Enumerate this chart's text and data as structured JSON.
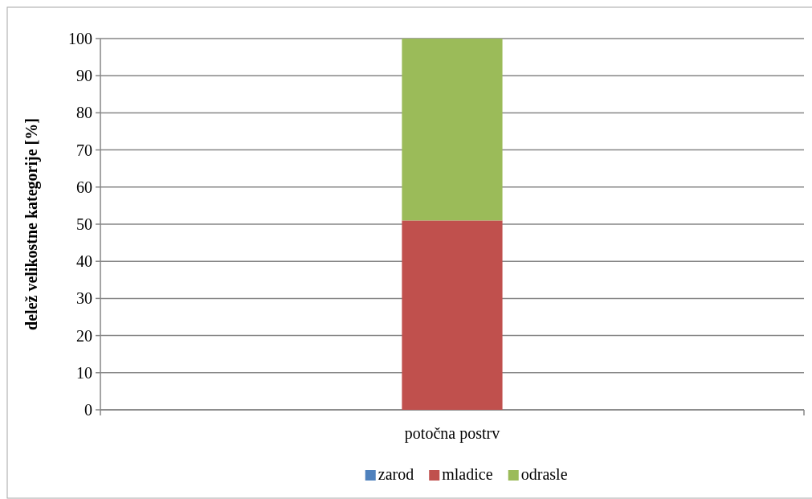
{
  "chart_data": {
    "type": "bar",
    "stacked": true,
    "ylabel": "delež velikostne kategorije [%]",
    "categories": [
      "potočna postrv"
    ],
    "series": [
      {
        "name": "zarod",
        "color": "#4f81bd",
        "values": [
          0
        ]
      },
      {
        "name": "mladice",
        "color": "#c0504d",
        "values": [
          51
        ]
      },
      {
        "name": "odrasle",
        "color": "#9bbb59",
        "values": [
          49
        ]
      }
    ],
    "ylim": [
      0,
      100
    ],
    "yticks": [
      0,
      10,
      20,
      30,
      40,
      50,
      60,
      70,
      80,
      90,
      100
    ],
    "grid": "y",
    "legend": "bottom"
  }
}
